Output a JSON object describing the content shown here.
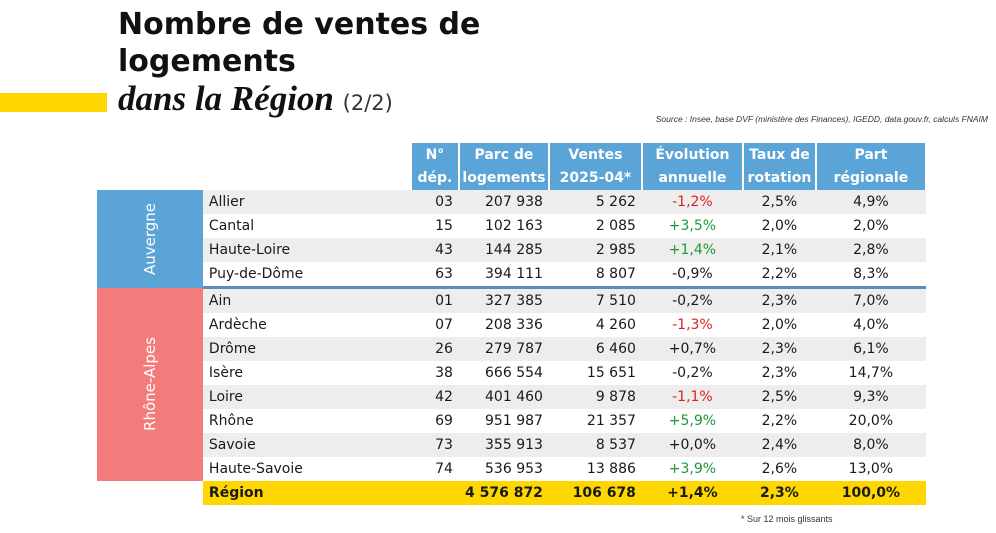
{
  "title": {
    "line1": "Nombre de ventes de",
    "line2": "logements",
    "line3": "dans la Région",
    "suffix": "(2/2)"
  },
  "source": "Source : Insee, base DVF (ministère des Finances), IGEDD, data.gouv.fr, calculs FNAIM",
  "footnote": "* Sur 12 mois glissants",
  "headers": {
    "dep": [
      "N°",
      "dép."
    ],
    "parc": [
      "Parc de",
      "logements"
    ],
    "ventes": [
      "Ventes",
      "2025-04*"
    ],
    "evolution": [
      "Évolution",
      "annuelle"
    ],
    "taux": [
      "Taux de",
      "rotation"
    ],
    "part": [
      "Part régionale"
    ]
  },
  "groups": [
    {
      "label": "Auvergne",
      "rows": [
        {
          "name": "Allier",
          "dep": "03",
          "parc": "207 938",
          "ventes": "5 262",
          "evolution": "-1,2%",
          "trend": "neg",
          "taux": "2,5%",
          "part": "4,9%"
        },
        {
          "name": "Cantal",
          "dep": "15",
          "parc": "102 163",
          "ventes": "2 085",
          "evolution": "+3,5%",
          "trend": "pos",
          "taux": "2,0%",
          "part": "2,0%"
        },
        {
          "name": "Haute-Loire",
          "dep": "43",
          "parc": "144 285",
          "ventes": "2 985",
          "evolution": "+1,4%",
          "trend": "pos",
          "taux": "2,1%",
          "part": "2,8%"
        },
        {
          "name": "Puy-de-Dôme",
          "dep": "63",
          "parc": "394 111",
          "ventes": "8 807",
          "evolution": "-0,9%",
          "trend": "none",
          "taux": "2,2%",
          "part": "8,3%"
        }
      ]
    },
    {
      "label": "Rhône-Alpes",
      "rows": [
        {
          "name": "Ain",
          "dep": "01",
          "parc": "327 385",
          "ventes": "7 510",
          "evolution": "-0,2%",
          "trend": "none",
          "taux": "2,3%",
          "part": "7,0%"
        },
        {
          "name": "Ardèche",
          "dep": "07",
          "parc": "208 336",
          "ventes": "4 260",
          "evolution": "-1,3%",
          "trend": "neg",
          "taux": "2,0%",
          "part": "4,0%"
        },
        {
          "name": "Drôme",
          "dep": "26",
          "parc": "279 787",
          "ventes": "6 460",
          "evolution": "+0,7%",
          "trend": "none",
          "taux": "2,3%",
          "part": "6,1%"
        },
        {
          "name": "Isère",
          "dep": "38",
          "parc": "666 554",
          "ventes": "15 651",
          "evolution": "-0,2%",
          "trend": "none",
          "taux": "2,3%",
          "part": "14,7%"
        },
        {
          "name": "Loire",
          "dep": "42",
          "parc": "401 460",
          "ventes": "9 878",
          "evolution": "-1,1%",
          "trend": "neg",
          "taux": "2,5%",
          "part": "9,3%"
        },
        {
          "name": "Rhône",
          "dep": "69",
          "parc": "951 987",
          "ventes": "21 357",
          "evolution": "+5,9%",
          "trend": "pos",
          "taux": "2,2%",
          "part": "20,0%"
        },
        {
          "name": "Savoie",
          "dep": "73",
          "parc": "355 913",
          "ventes": "8 537",
          "evolution": "+0,0%",
          "trend": "none",
          "taux": "2,4%",
          "part": "8,0%"
        },
        {
          "name": "Haute-Savoie",
          "dep": "74",
          "parc": "536 953",
          "ventes": "13 886",
          "evolution": "+3,9%",
          "trend": "pos",
          "taux": "2,6%",
          "part": "13,0%"
        }
      ]
    }
  ],
  "total": {
    "name": "Région",
    "dep": "",
    "parc": "4 576 872",
    "ventes": "106 678",
    "evolution": "+1,4%",
    "taux": "2,3%",
    "part": "100,0%"
  },
  "colors": {
    "header": "#5BA4D8",
    "auvergne": "#5BA4D8",
    "rhone_alpes": "#F47B7B",
    "highlight": "#FFD700",
    "negative": "#E0201E",
    "positive": "#1E9A3A"
  }
}
